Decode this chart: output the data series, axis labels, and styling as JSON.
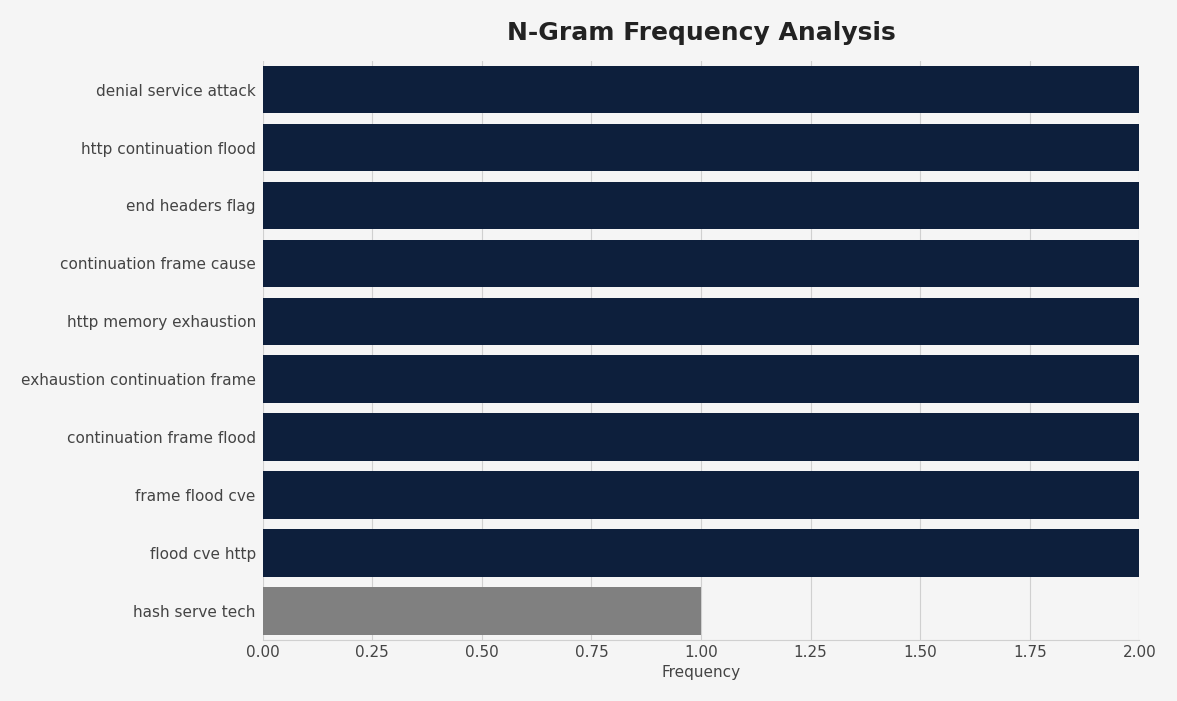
{
  "title": "N-Gram Frequency Analysis",
  "categories": [
    "hash serve tech",
    "flood cve http",
    "frame flood cve",
    "continuation frame flood",
    "exhaustion continuation frame",
    "http memory exhaustion",
    "continuation frame cause",
    "end headers flag",
    "http continuation flood",
    "denial service attack"
  ],
  "values": [
    1,
    2,
    2,
    2,
    2,
    2,
    2,
    2,
    2,
    2
  ],
  "bar_colors": [
    "#808080",
    "#0d1f3c",
    "#0d1f3c",
    "#0d1f3c",
    "#0d1f3c",
    "#0d1f3c",
    "#0d1f3c",
    "#0d1f3c",
    "#0d1f3c",
    "#0d1f3c"
  ],
  "xlabel": "Frequency",
  "xlim": [
    0,
    2.0
  ],
  "xticks": [
    0.0,
    0.25,
    0.5,
    0.75,
    1.0,
    1.25,
    1.5,
    1.75,
    2.0
  ],
  "xtick_labels": [
    "0.00",
    "0.25",
    "0.50",
    "0.75",
    "1.00",
    "1.25",
    "1.50",
    "1.75",
    "2.00"
  ],
  "background_color": "#f5f5f5",
  "title_fontsize": 18,
  "label_fontsize": 11,
  "tick_fontsize": 11,
  "bar_height": 0.82,
  "navy_color": "#0d1f3c",
  "gray_color": "#808080",
  "label_color": "#444444",
  "grid_color": "#d0d0d0"
}
